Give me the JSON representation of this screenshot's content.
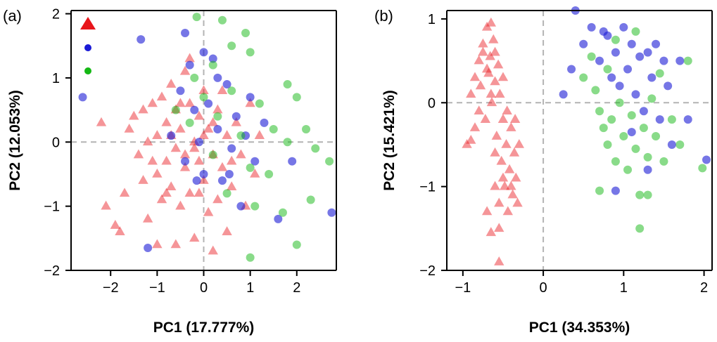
{
  "chart_data": [
    {
      "type": "scatter",
      "panel_label": "(a)",
      "xlabel": "PC1 (17.777%)",
      "ylabel": "PC2 (12.053%)",
      "xlim": [
        -2.85,
        2.85
      ],
      "ylim": [
        -2.0,
        2.05
      ],
      "xticks": [
        -2,
        -1,
        0,
        1,
        2
      ],
      "xtick_labels": [
        "−2",
        "−1",
        "0",
        "1",
        "2"
      ],
      "yticks": [
        -2,
        -1,
        0,
        1,
        2
      ],
      "ytick_labels": [
        "−2",
        "−1",
        "0",
        "1",
        "2"
      ],
      "reference_lines": {
        "x": 0,
        "y": 0,
        "style": "dashed"
      },
      "legend": {
        "position": "top-left",
        "entries": [
          {
            "series": "red",
            "marker": "triangle",
            "color": "#e8151b"
          },
          {
            "series": "blue",
            "marker": "circle",
            "color": "#1a1ad6"
          },
          {
            "series": "green",
            "marker": "circle",
            "color": "#14b814"
          }
        ]
      },
      "series": [
        {
          "name": "red",
          "marker": "triangle",
          "color": "#e8151b",
          "alpha": 0.45,
          "points": [
            [
              -2.1,
              -1.0
            ],
            [
              -1.9,
              -1.3
            ],
            [
              -1.8,
              -1.4
            ],
            [
              -1.7,
              -0.8
            ],
            [
              -1.5,
              0.4
            ],
            [
              -1.4,
              -0.2
            ],
            [
              -1.3,
              -0.6
            ],
            [
              -1.2,
              -1.2
            ],
            [
              -1.1,
              0.6
            ],
            [
              -1.0,
              0.1
            ],
            [
              -1.0,
              -0.5
            ],
            [
              -0.9,
              -0.9
            ],
            [
              -0.8,
              0.3
            ],
            [
              -0.8,
              -0.3
            ],
            [
              -0.7,
              0.9
            ],
            [
              -0.7,
              -0.7
            ],
            [
              -0.6,
              0.5
            ],
            [
              -0.6,
              -0.1
            ],
            [
              -0.5,
              -1.0
            ],
            [
              -0.5,
              0.2
            ],
            [
              -0.4,
              1.1
            ],
            [
              -0.4,
              -0.4
            ],
            [
              -0.3,
              0.6
            ],
            [
              -0.3,
              -0.8
            ],
            [
              -0.2,
              0.0
            ],
            [
              -0.2,
              -1.5
            ],
            [
              -0.1,
              0.4
            ],
            [
              -0.1,
              -0.3
            ],
            [
              0.0,
              0.8
            ],
            [
              0.0,
              -0.6
            ],
            [
              0.1,
              0.2
            ],
            [
              0.1,
              -1.1
            ],
            [
              0.2,
              -0.2
            ],
            [
              0.3,
              0.5
            ],
            [
              0.3,
              -0.9
            ],
            [
              0.4,
              -0.4
            ],
            [
              0.5,
              0.1
            ],
            [
              0.5,
              -1.4
            ],
            [
              0.6,
              -0.7
            ],
            [
              0.7,
              0.3
            ],
            [
              0.8,
              -0.2
            ],
            [
              0.9,
              -1.0
            ],
            [
              1.0,
              0.6
            ],
            [
              1.1,
              -0.5
            ],
            [
              1.2,
              0.1
            ],
            [
              -2.2,
              0.3
            ],
            [
              -1.6,
              0.2
            ],
            [
              -1.2,
              0.0
            ],
            [
              -0.9,
              0.7
            ],
            [
              -0.6,
              -1.6
            ],
            [
              -0.3,
              1.3
            ],
            [
              0.0,
              0.1
            ],
            [
              0.2,
              -1.7
            ],
            [
              -1.0,
              -1.6
            ],
            [
              -0.2,
              -0.1
            ],
            [
              0.4,
              0.8
            ],
            [
              -0.5,
              0.6
            ],
            [
              -0.8,
              -0.8
            ],
            [
              -1.3,
              0.5
            ],
            [
              -1.1,
              -0.3
            ],
            [
              -0.7,
              0.1
            ],
            [
              -0.4,
              -0.2
            ],
            [
              -0.1,
              -0.8
            ],
            [
              0.2,
              0.3
            ],
            [
              0.6,
              -0.3
            ]
          ]
        },
        {
          "name": "blue",
          "marker": "circle",
          "color": "#1a1ad6",
          "alpha": 0.6,
          "points": [
            [
              -2.6,
              0.7
            ],
            [
              -1.35,
              1.6
            ],
            [
              -1.2,
              -1.65
            ],
            [
              -0.7,
              0.1
            ],
            [
              -0.5,
              0.8
            ],
            [
              -0.4,
              -0.3
            ],
            [
              -0.3,
              1.2
            ],
            [
              -0.2,
              0.5
            ],
            [
              -0.1,
              0.0
            ],
            [
              0.0,
              1.4
            ],
            [
              0.0,
              -0.5
            ],
            [
              0.1,
              0.6
            ],
            [
              0.2,
              1.3
            ],
            [
              0.3,
              0.2
            ],
            [
              0.4,
              -0.6
            ],
            [
              0.5,
              0.9
            ],
            [
              0.6,
              -0.1
            ],
            [
              0.7,
              0.4
            ],
            [
              0.8,
              -1.0
            ],
            [
              0.9,
              0.1
            ],
            [
              1.0,
              0.7
            ],
            [
              1.1,
              -0.3
            ],
            [
              1.3,
              0.3
            ],
            [
              1.6,
              -1.2
            ],
            [
              1.9,
              -0.3
            ],
            [
              2.75,
              -1.1
            ],
            [
              -0.4,
              1.7
            ],
            [
              0.3,
              1.0
            ],
            [
              -0.15,
              -0.6
            ],
            [
              0.55,
              -0.5
            ]
          ]
        },
        {
          "name": "green",
          "marker": "circle",
          "color": "#14b814",
          "alpha": 0.5,
          "points": [
            [
              -0.15,
              1.95
            ],
            [
              0.4,
              1.9
            ],
            [
              0.9,
              1.7
            ],
            [
              1.0,
              1.4
            ],
            [
              0.6,
              1.5
            ],
            [
              0.2,
              1.2
            ],
            [
              -0.2,
              1.0
            ],
            [
              0.0,
              0.7
            ],
            [
              0.3,
              0.4
            ],
            [
              0.6,
              0.8
            ],
            [
              0.8,
              0.1
            ],
            [
              1.0,
              -0.4
            ],
            [
              1.2,
              0.6
            ],
            [
              1.5,
              0.2
            ],
            [
              1.8,
              0.9
            ],
            [
              2.0,
              0.7
            ],
            [
              2.2,
              0.2
            ],
            [
              2.4,
              -0.1
            ],
            [
              2.7,
              -0.3
            ],
            [
              1.7,
              -1.1
            ],
            [
              2.0,
              -1.6
            ],
            [
              2.3,
              -0.9
            ],
            [
              1.1,
              -1.0
            ],
            [
              1.0,
              -1.8
            ],
            [
              0.5,
              -0.8
            ],
            [
              0.2,
              -0.2
            ],
            [
              -0.3,
              0.3
            ],
            [
              -0.6,
              0.5
            ],
            [
              1.8,
              0.0
            ],
            [
              1.4,
              -0.5
            ]
          ]
        }
      ]
    },
    {
      "type": "scatter",
      "panel_label": "(b)",
      "xlabel": "PC1 (34.353%)",
      "ylabel": "PC2 (15.421%)",
      "xlim": [
        -1.2,
        2.1
      ],
      "ylim": [
        -2.0,
        1.1
      ],
      "xticks": [
        -1,
        0,
        1,
        2
      ],
      "xtick_labels": [
        "−1",
        "0",
        "1",
        "2"
      ],
      "yticks": [
        -2,
        -1,
        0,
        1
      ],
      "ytick_labels": [
        "−2",
        "−1",
        "0",
        "1"
      ],
      "reference_lines": {
        "x": 0,
        "y": 0,
        "style": "dashed"
      },
      "series": [
        {
          "name": "red",
          "marker": "triangle",
          "color": "#e8151b",
          "alpha": 0.45,
          "points": [
            [
              -0.95,
              -0.5
            ],
            [
              -0.9,
              0.1
            ],
            [
              -0.85,
              -0.3
            ],
            [
              -0.8,
              0.5
            ],
            [
              -0.78,
              0.2
            ],
            [
              -0.75,
              0.7
            ],
            [
              -0.72,
              -0.2
            ],
            [
              -0.7,
              0.9
            ],
            [
              -0.68,
              0.35
            ],
            [
              -0.66,
              0.55
            ],
            [
              -0.64,
              0.0
            ],
            [
              -0.62,
              0.75
            ],
            [
              -0.6,
              0.25
            ],
            [
              -0.58,
              -0.4
            ],
            [
              -0.56,
              0.45
            ],
            [
              -0.54,
              0.1
            ],
            [
              -0.52,
              -0.7
            ],
            [
              -0.5,
              -0.2
            ],
            [
              -0.48,
              -1.0
            ],
            [
              -0.46,
              -0.5
            ],
            [
              -0.44,
              -1.3
            ],
            [
              -0.42,
              -0.8
            ],
            [
              -0.4,
              -0.3
            ],
            [
              -0.38,
              -1.1
            ],
            [
              -0.36,
              -0.6
            ],
            [
              -0.34,
              -0.9
            ],
            [
              -0.32,
              -1.2
            ],
            [
              -0.3,
              -0.5
            ],
            [
              -0.55,
              -1.5
            ],
            [
              -0.65,
              -1.55
            ],
            [
              -0.55,
              -1.9
            ],
            [
              -0.7,
              -1.3
            ],
            [
              -0.6,
              -1.0
            ],
            [
              -0.8,
              -0.1
            ],
            [
              -0.9,
              -0.45
            ],
            [
              -0.75,
              0.6
            ],
            [
              -0.7,
              0.4
            ],
            [
              -0.65,
              0.1
            ],
            [
              -0.6,
              0.6
            ],
            [
              -0.5,
              0.3
            ],
            [
              -0.45,
              -0.1
            ],
            [
              -0.6,
              -0.6
            ],
            [
              -0.5,
              -0.9
            ],
            [
              -0.4,
              -1.0
            ],
            [
              -0.55,
              -1.2
            ],
            [
              -0.65,
              0.95
            ],
            [
              -0.85,
              0.3
            ],
            [
              -0.35,
              -0.2
            ]
          ]
        },
        {
          "name": "blue",
          "marker": "circle",
          "color": "#1a1ad6",
          "alpha": 0.6,
          "points": [
            [
              0.4,
              1.1
            ],
            [
              0.5,
              0.7
            ],
            [
              0.6,
              0.9
            ],
            [
              0.7,
              0.5
            ],
            [
              0.8,
              0.8
            ],
            [
              0.85,
              0.3
            ],
            [
              0.9,
              0.6
            ],
            [
              1.0,
              0.9
            ],
            [
              1.05,
              0.4
            ],
            [
              1.1,
              0.7
            ],
            [
              1.15,
              0.1
            ],
            [
              1.2,
              0.55
            ],
            [
              1.25,
              -0.1
            ],
            [
              1.3,
              0.6
            ],
            [
              1.35,
              0.3
            ],
            [
              1.4,
              0.7
            ],
            [
              1.45,
              -0.2
            ],
            [
              1.5,
              0.5
            ],
            [
              1.55,
              0.2
            ],
            [
              1.6,
              -0.5
            ],
            [
              1.7,
              0.5
            ],
            [
              1.8,
              -0.2
            ],
            [
              2.03,
              -0.68
            ],
            [
              0.9,
              -1.05
            ],
            [
              1.3,
              -0.8
            ],
            [
              0.25,
              0.1
            ],
            [
              0.35,
              0.4
            ],
            [
              0.95,
              0.2
            ],
            [
              1.1,
              -0.35
            ],
            [
              0.75,
              0.85
            ]
          ]
        },
        {
          "name": "green",
          "marker": "circle",
          "color": "#14b814",
          "alpha": 0.5,
          "points": [
            [
              0.5,
              0.3
            ],
            [
              0.6,
              0.55
            ],
            [
              0.65,
              0.15
            ],
            [
              0.7,
              -0.1
            ],
            [
              0.75,
              -0.3
            ],
            [
              0.8,
              -0.5
            ],
            [
              0.85,
              -0.2
            ],
            [
              0.9,
              -0.7
            ],
            [
              0.95,
              0.0
            ],
            [
              1.0,
              -0.4
            ],
            [
              1.05,
              -0.8
            ],
            [
              1.1,
              -0.15
            ],
            [
              1.15,
              -0.55
            ],
            [
              1.2,
              -1.1
            ],
            [
              1.25,
              -0.3
            ],
            [
              1.3,
              -0.65
            ],
            [
              1.35,
              0.05
            ],
            [
              1.4,
              -0.4
            ],
            [
              1.5,
              -0.7
            ],
            [
              1.6,
              -0.2
            ],
            [
              1.7,
              -0.5
            ],
            [
              1.8,
              0.5
            ],
            [
              1.98,
              -0.78
            ],
            [
              1.2,
              -1.5
            ],
            [
              0.7,
              -1.05
            ],
            [
              0.9,
              0.75
            ],
            [
              1.15,
              0.85
            ],
            [
              0.8,
              0.4
            ],
            [
              1.3,
              -1.1
            ],
            [
              1.45,
              0.35
            ]
          ]
        }
      ]
    }
  ]
}
